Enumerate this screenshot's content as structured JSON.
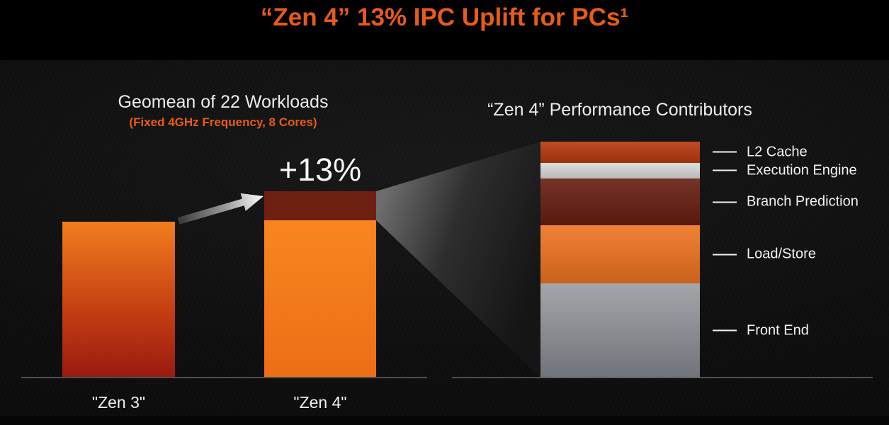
{
  "header": {
    "title": "“Zen 4” 13% IPC Uplift for PCs¹"
  },
  "colors": {
    "accent_orange": "#e65c18",
    "bar_orange": "#f17d1f",
    "bar_dark_red": "#991a10",
    "bar_orange_bright": "#f9851f",
    "bar_orange_deep": "#ec6e16",
    "uplift_cap": "#6e2013",
    "front_end_top": "#a3a6a9",
    "front_end_bottom": "#70747a",
    "axis_gray": "#4f4f4f",
    "text_white": "#efefef"
  },
  "chart_data": [
    {
      "type": "bar",
      "title": "Geomean of 22 Workloads",
      "subtitle": "(Fixed 4GHz Frequency, 8 Cores)",
      "categories": [
        "\"Zen 3\"",
        "\"Zen 4\""
      ],
      "values": [
        100,
        113
      ],
      "annotation": "+13%",
      "grid": false,
      "legend": false
    },
    {
      "type": "bar",
      "subtype": "stacked",
      "title": "“Zen 4” Performance Contributors",
      "segments": [
        {
          "label": "L2 Cache",
          "share_pct": 9.0,
          "color": "#b8380d"
        },
        {
          "label": "Execution Engine",
          "share_pct": 6.6,
          "color": "#d9d9d9"
        },
        {
          "label": "Branch Prediction",
          "share_pct": 19.9,
          "color": "#671d10"
        },
        {
          "label": "Load/Store",
          "share_pct": 24.6,
          "color": "#ee7320"
        },
        {
          "label": "Front End",
          "share_pct": 39.9,
          "color": "#8b8e91"
        }
      ],
      "segment_order": "top-to-bottom",
      "labels_position": "right",
      "grid": false
    }
  ]
}
